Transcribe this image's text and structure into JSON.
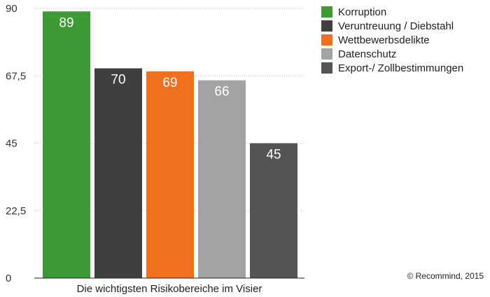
{
  "chart_data": {
    "type": "bar",
    "title": "",
    "xlabel": "Die wichtigsten Risikobereiche im Visier",
    "ylabel": "",
    "ylim": [
      0,
      90
    ],
    "yticks": [
      "0",
      "22,5",
      "45",
      "67,5",
      "90"
    ],
    "ytick_values": [
      0,
      22.5,
      45,
      67.5,
      90
    ],
    "grid": true,
    "legend_position": "top-right",
    "series": [
      {
        "name": "Korruption",
        "value": 89,
        "label": "89",
        "color": "#3d9a35"
      },
      {
        "name": "Veruntreuung / Diebstahl",
        "value": 70,
        "label": "70",
        "color": "#3f3f3f"
      },
      {
        "name": "Wettbewerbsdelikte",
        "value": 69,
        "label": "69",
        "color": "#f07020"
      },
      {
        "name": "Datenschutz",
        "value": 66,
        "label": "66",
        "color": "#a3a3a3"
      },
      {
        "name": "Export-/ Zollbestimmungen",
        "value": 45,
        "label": "45",
        "color": "#545454"
      }
    ]
  },
  "source": "© Recommind, 2015"
}
